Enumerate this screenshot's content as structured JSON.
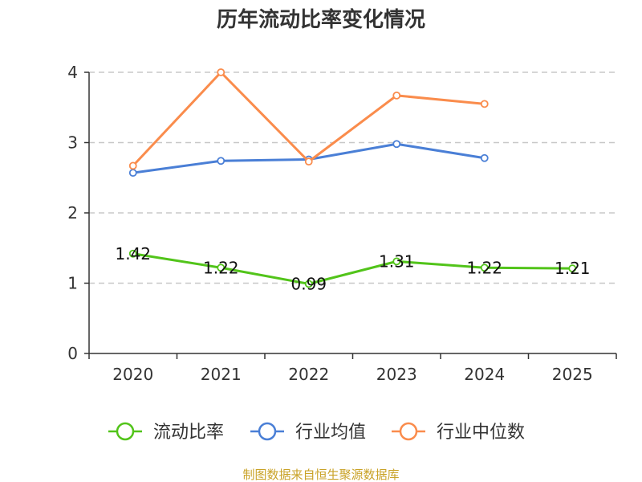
{
  "chart_data": {
    "type": "line",
    "title": "历年流动比率变化情况",
    "categories": [
      "2020",
      "2021",
      "2022",
      "2023",
      "2024",
      "2025"
    ],
    "ylim": [
      0,
      4
    ],
    "yticks": [
      0,
      1,
      2,
      3,
      4
    ],
    "grid": true,
    "legend_position": "bottom",
    "series": [
      {
        "name": "流动比率",
        "color": "#52c41a",
        "values": [
          1.42,
          1.22,
          0.99,
          1.31,
          1.22,
          1.21
        ],
        "labels": [
          "1.42",
          "1.22",
          "0.99",
          "1.31",
          "1.22",
          "1.21"
        ],
        "show_labels": true
      },
      {
        "name": "行业均值",
        "color": "#4a7fd6",
        "values": [
          2.57,
          2.74,
          2.76,
          2.98,
          2.78,
          null
        ],
        "show_labels": false
      },
      {
        "name": "行业中位数",
        "color": "#fa8c4c",
        "values": [
          2.67,
          4.0,
          2.73,
          3.67,
          3.55,
          null
        ],
        "show_labels": false
      }
    ],
    "source": "制图数据来自恒生聚源数据库"
  }
}
